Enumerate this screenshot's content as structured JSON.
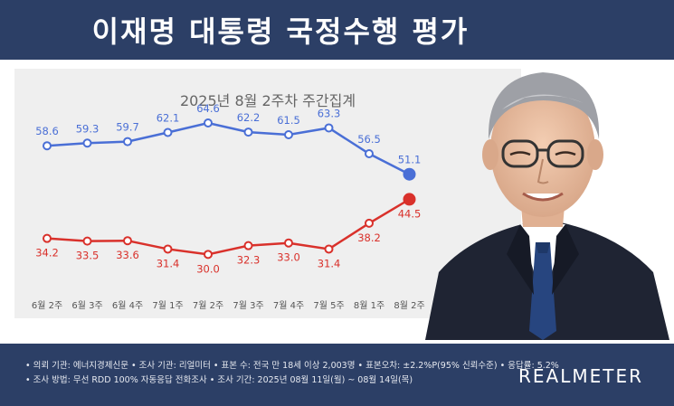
{
  "header": {
    "title": "이재명 대통령 국정수행 평가"
  },
  "chart_data": {
    "type": "line",
    "subtitle": "2025년 8월 2주차 주간집계",
    "categories": [
      "6월 2주",
      "6월 3주",
      "6월 4주",
      "7월 1주",
      "7월 2주",
      "7월 3주",
      "7월 4주",
      "7월 5주",
      "8월 1주",
      "8월 2주"
    ],
    "series": [
      {
        "name": "",
        "color": "#4a6fd6",
        "values": [
          58.6,
          59.3,
          59.7,
          62.1,
          64.6,
          62.2,
          61.5,
          63.3,
          56.5,
          51.1
        ]
      },
      {
        "name": "",
        "color": "#d9312b",
        "values": [
          34.2,
          33.5,
          33.6,
          31.4,
          30.0,
          32.3,
          33.0,
          31.4,
          38.2,
          44.5
        ]
      }
    ],
    "ylim": [
      20,
      70
    ],
    "grid": false
  },
  "footer": {
    "line1": "• 의뢰 기관: 에너지경제신문 • 조사 기관: 리얼미터 • 표본 수: 전국 만 18세 이상 2,003명 • 표본오차: ±2.2%P(95% 신뢰수준) • 응답률: 5.2%",
    "line2": "• 조사 방법: 무선 RDD 100% 자동응답 전화조사 • 조사 기간: 2025년 08월 11일(월) ~ 08월 14일(목)",
    "brand": "REALMETER"
  }
}
